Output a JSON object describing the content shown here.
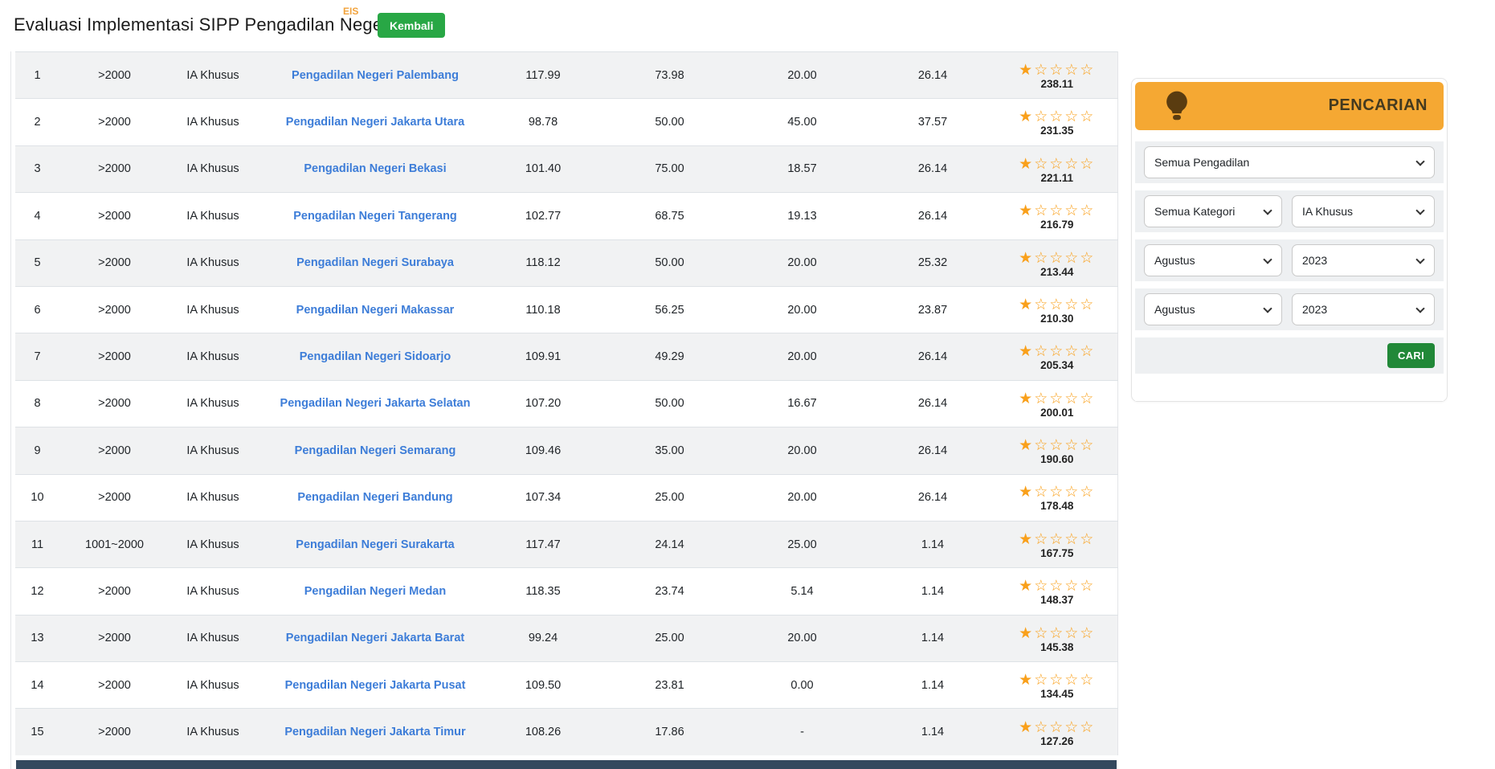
{
  "header": {
    "title": "Evaluasi Implementasi SIPP Pengadilan Negeri",
    "superscript": "EIS",
    "back_button": "Kembali"
  },
  "table": {
    "rows": [
      {
        "no": "1",
        "kategori_perkara": ">2000",
        "kelas": "IA Khusus",
        "pengadilan": "Pengadilan Negeri Palembang",
        "v1": "117.99",
        "v2": "73.98",
        "v3": "20.00",
        "v4": "26.14",
        "stars_filled": 1,
        "stars_total": 5,
        "total": "238.11"
      },
      {
        "no": "2",
        "kategori_perkara": ">2000",
        "kelas": "IA Khusus",
        "pengadilan": "Pengadilan Negeri Jakarta Utara",
        "v1": "98.78",
        "v2": "50.00",
        "v3": "45.00",
        "v4": "37.57",
        "stars_filled": 1,
        "stars_total": 5,
        "total": "231.35"
      },
      {
        "no": "3",
        "kategori_perkara": ">2000",
        "kelas": "IA Khusus",
        "pengadilan": "Pengadilan Negeri Bekasi",
        "v1": "101.40",
        "v2": "75.00",
        "v3": "18.57",
        "v4": "26.14",
        "stars_filled": 1,
        "stars_total": 5,
        "total": "221.11"
      },
      {
        "no": "4",
        "kategori_perkara": ">2000",
        "kelas": "IA Khusus",
        "pengadilan": "Pengadilan Negeri Tangerang",
        "v1": "102.77",
        "v2": "68.75",
        "v3": "19.13",
        "v4": "26.14",
        "stars_filled": 1,
        "stars_total": 5,
        "total": "216.79"
      },
      {
        "no": "5",
        "kategori_perkara": ">2000",
        "kelas": "IA Khusus",
        "pengadilan": "Pengadilan Negeri Surabaya",
        "v1": "118.12",
        "v2": "50.00",
        "v3": "20.00",
        "v4": "25.32",
        "stars_filled": 1,
        "stars_total": 5,
        "total": "213.44"
      },
      {
        "no": "6",
        "kategori_perkara": ">2000",
        "kelas": "IA Khusus",
        "pengadilan": "Pengadilan Negeri Makassar",
        "v1": "110.18",
        "v2": "56.25",
        "v3": "20.00",
        "v4": "23.87",
        "stars_filled": 1,
        "stars_total": 5,
        "total": "210.30"
      },
      {
        "no": "7",
        "kategori_perkara": ">2000",
        "kelas": "IA Khusus",
        "pengadilan": "Pengadilan Negeri Sidoarjo",
        "v1": "109.91",
        "v2": "49.29",
        "v3": "20.00",
        "v4": "26.14",
        "stars_filled": 1,
        "stars_total": 5,
        "total": "205.34"
      },
      {
        "no": "8",
        "kategori_perkara": ">2000",
        "kelas": "IA Khusus",
        "pengadilan": "Pengadilan Negeri Jakarta Selatan",
        "v1": "107.20",
        "v2": "50.00",
        "v3": "16.67",
        "v4": "26.14",
        "stars_filled": 1,
        "stars_total": 5,
        "total": "200.01"
      },
      {
        "no": "9",
        "kategori_perkara": ">2000",
        "kelas": "IA Khusus",
        "pengadilan": "Pengadilan Negeri Semarang",
        "v1": "109.46",
        "v2": "35.00",
        "v3": "20.00",
        "v4": "26.14",
        "stars_filled": 1,
        "stars_total": 5,
        "total": "190.60"
      },
      {
        "no": "10",
        "kategori_perkara": ">2000",
        "kelas": "IA Khusus",
        "pengadilan": "Pengadilan Negeri Bandung",
        "v1": "107.34",
        "v2": "25.00",
        "v3": "20.00",
        "v4": "26.14",
        "stars_filled": 1,
        "stars_total": 5,
        "total": "178.48"
      },
      {
        "no": "11",
        "kategori_perkara": "1001~2000",
        "kelas": "IA Khusus",
        "pengadilan": "Pengadilan Negeri Surakarta",
        "v1": "117.47",
        "v2": "24.14",
        "v3": "25.00",
        "v4": "1.14",
        "stars_filled": 1,
        "stars_total": 5,
        "total": "167.75"
      },
      {
        "no": "12",
        "kategori_perkara": ">2000",
        "kelas": "IA Khusus",
        "pengadilan": "Pengadilan Negeri Medan",
        "v1": "118.35",
        "v2": "23.74",
        "v3": "5.14",
        "v4": "1.14",
        "stars_filled": 1,
        "stars_total": 5,
        "total": "148.37"
      },
      {
        "no": "13",
        "kategori_perkara": ">2000",
        "kelas": "IA Khusus",
        "pengadilan": "Pengadilan Negeri Jakarta Barat",
        "v1": "99.24",
        "v2": "25.00",
        "v3": "20.00",
        "v4": "1.14",
        "stars_filled": 1,
        "stars_total": 5,
        "total": "145.38"
      },
      {
        "no": "14",
        "kategori_perkara": ">2000",
        "kelas": "IA Khusus",
        "pengadilan": "Pengadilan Negeri Jakarta Pusat",
        "v1": "109.50",
        "v2": "23.81",
        "v3": "0.00",
        "v4": "1.14",
        "stars_filled": 1,
        "stars_total": 5,
        "total": "134.45"
      },
      {
        "no": "15",
        "kategori_perkara": ">2000",
        "kelas": "IA Khusus",
        "pengadilan": "Pengadilan Negeri Jakarta Timur",
        "v1": "108.26",
        "v2": "17.86",
        "v3": "-",
        "v4": "1.14",
        "stars_filled": 1,
        "stars_total": 5,
        "total": "127.26"
      }
    ]
  },
  "search_panel": {
    "title": "PENCARIAN",
    "court_select": "Semua Pengadilan",
    "category_select": "Semua Kategori",
    "class_select": "IA Khusus",
    "month_from_select": "Agustus",
    "year_from_select": "2023",
    "month_to_select": "Agustus",
    "year_to_select": "2023",
    "search_button": "CARI"
  },
  "colors": {
    "accent_orange": "#F5A833",
    "star_orange": "#F9A01B",
    "link_blue": "#3D7DD8",
    "back_button_green": "#28A745",
    "search_button_green": "#218838",
    "row_stripe": "#F1F2F3",
    "bottom_bar_navy": "#34495E"
  }
}
